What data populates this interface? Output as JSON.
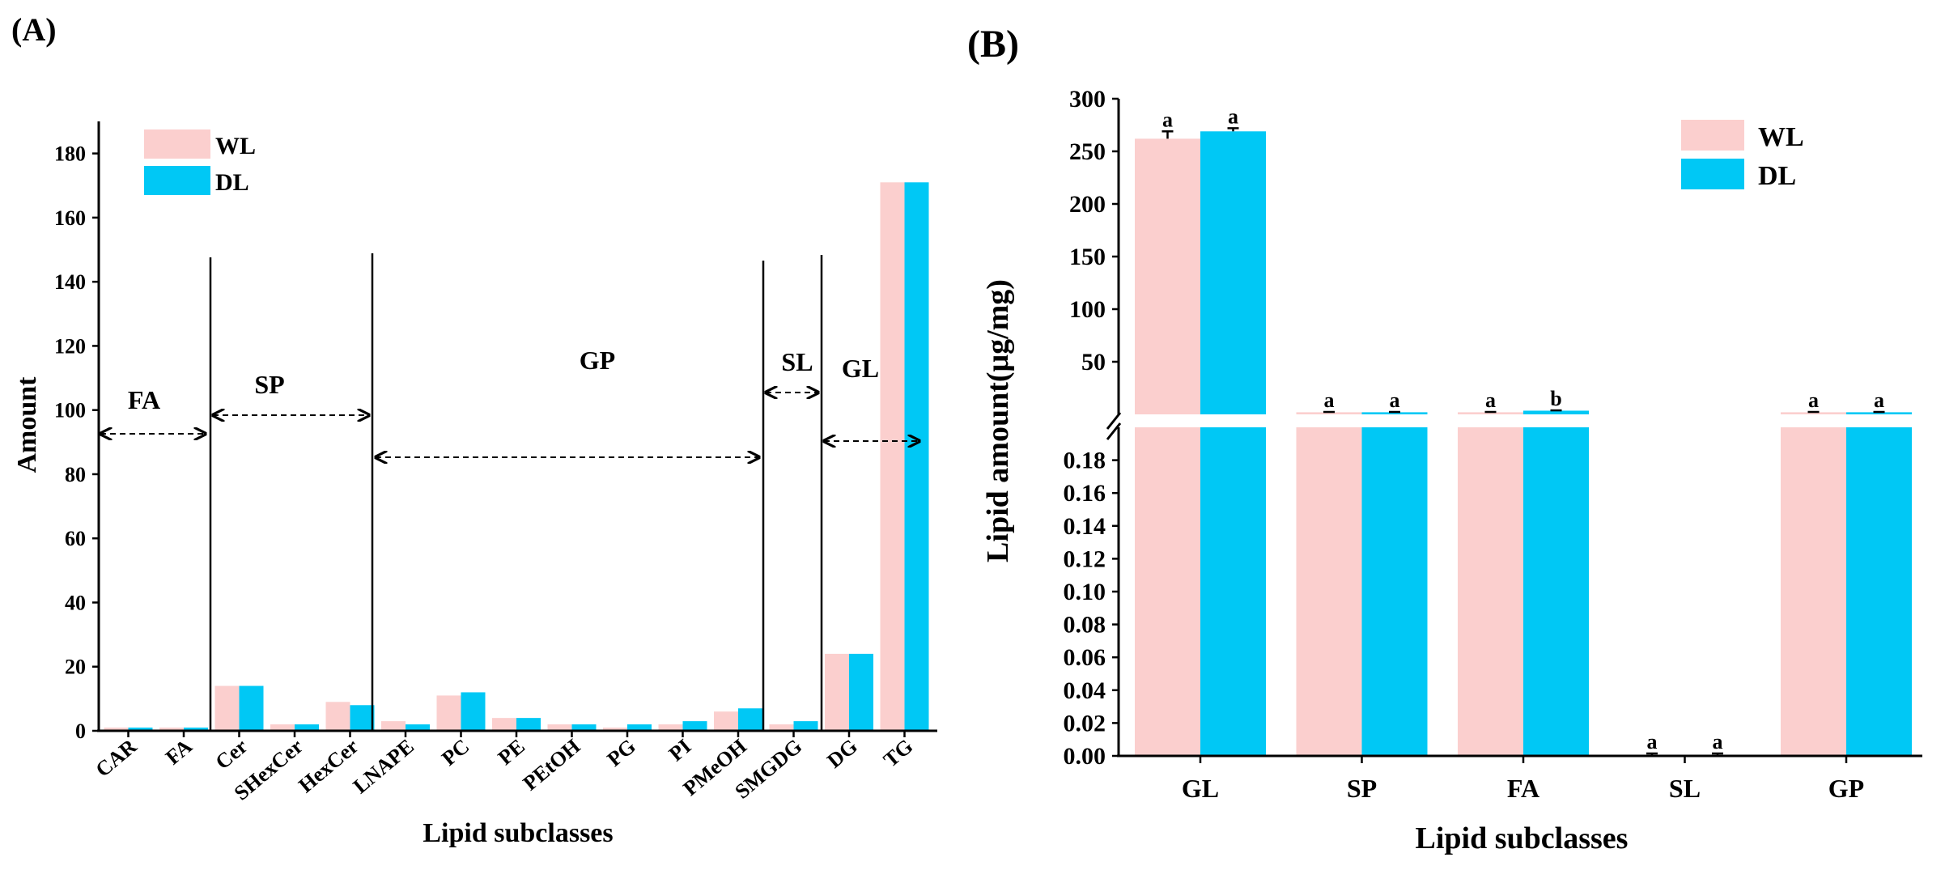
{
  "colors": {
    "WL": "#fbcfce",
    "DL": "#00c8f5",
    "axis": "#000000"
  },
  "chart_data": [
    {
      "panel_label": "(A)",
      "type": "bar",
      "xlabel": "Lipid subclasses",
      "ylabel": "Amount",
      "ylim": [
        0,
        190
      ],
      "yticks": [
        "0",
        "20",
        "40",
        "60",
        "80",
        "100",
        "120",
        "140",
        "160",
        "180"
      ],
      "legend": [
        "WL",
        "DL"
      ],
      "categories": [
        "CAR",
        "FA",
        "Cer",
        "SHexCer",
        "HexCer",
        "LNAPE",
        "PC",
        "PE",
        "PEtOH",
        "PG",
        "PI",
        "PMeOH",
        "SMGDG",
        "DG",
        "TG"
      ],
      "series": [
        {
          "name": "WL",
          "values": [
            1,
            1,
            14,
            2,
            9,
            3,
            11,
            4,
            2,
            1,
            2,
            6,
            2,
            24,
            171
          ]
        },
        {
          "name": "DL",
          "values": [
            1,
            1,
            14,
            2,
            8,
            2,
            12,
            4,
            2,
            2,
            3,
            7,
            3,
            24,
            171
          ]
        }
      ],
      "groups": [
        "FA",
        "SP",
        "GP",
        "SL",
        "GL"
      ]
    },
    {
      "panel_label": "(B)",
      "type": "bar",
      "xlabel": "Lipid subclasses",
      "ylabel": "Lipid amount(μg/mg)",
      "broken_axis": {
        "lower": [
          0,
          0.2
        ],
        "upper": [
          0,
          300
        ]
      },
      "yticks_lower": [
        "0.00",
        "0.02",
        "0.04",
        "0.06",
        "0.08",
        "0.10",
        "0.12",
        "0.14",
        "0.16",
        "0.18"
      ],
      "yticks_upper": [
        "50",
        "100",
        "150",
        "200",
        "250",
        "300"
      ],
      "legend": [
        "WL",
        "DL"
      ],
      "categories": [
        "GL",
        "SP",
        "FA",
        "SL",
        "GP"
      ],
      "series": [
        {
          "name": "WL",
          "values": [
            262,
            2.0,
            2.0,
            0.0005,
            2.0
          ],
          "errors": [
            7,
            0.3,
            0.3,
            0.0005,
            0.3
          ],
          "letters": [
            "a",
            "a",
            "a",
            "a",
            "a"
          ]
        },
        {
          "name": "DL",
          "values": [
            269,
            2.0,
            3.5,
            0.0005,
            2.0
          ],
          "errors": [
            3,
            0.3,
            0.3,
            0.0005,
            0.3
          ],
          "letters": [
            "a",
            "a",
            "b",
            "a",
            "a"
          ]
        }
      ]
    }
  ]
}
